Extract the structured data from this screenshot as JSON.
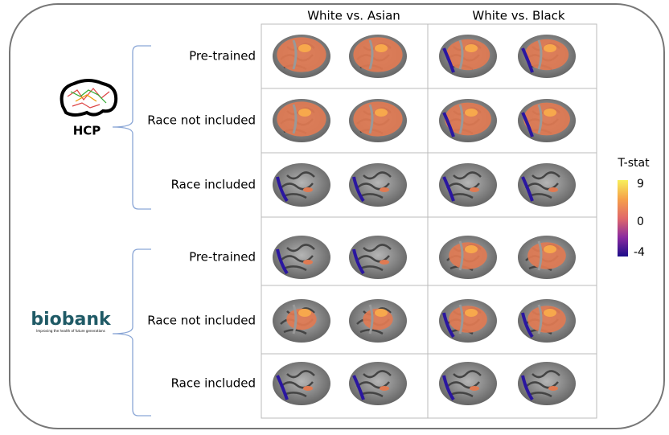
{
  "columns": [
    "White vs. Asian",
    "White vs. Black"
  ],
  "groups": [
    {
      "label": "HCP",
      "rows": [
        "Pre-trained",
        "Race not included",
        "Race included"
      ]
    },
    {
      "label": "biobank",
      "tagline": "Improving the health of future generations",
      "rows": [
        "Pre-trained",
        "Race not included",
        "Race included"
      ]
    }
  ],
  "colorbar": {
    "title": "T-stat",
    "ticks": [
      9,
      0,
      -4
    ]
  }
}
